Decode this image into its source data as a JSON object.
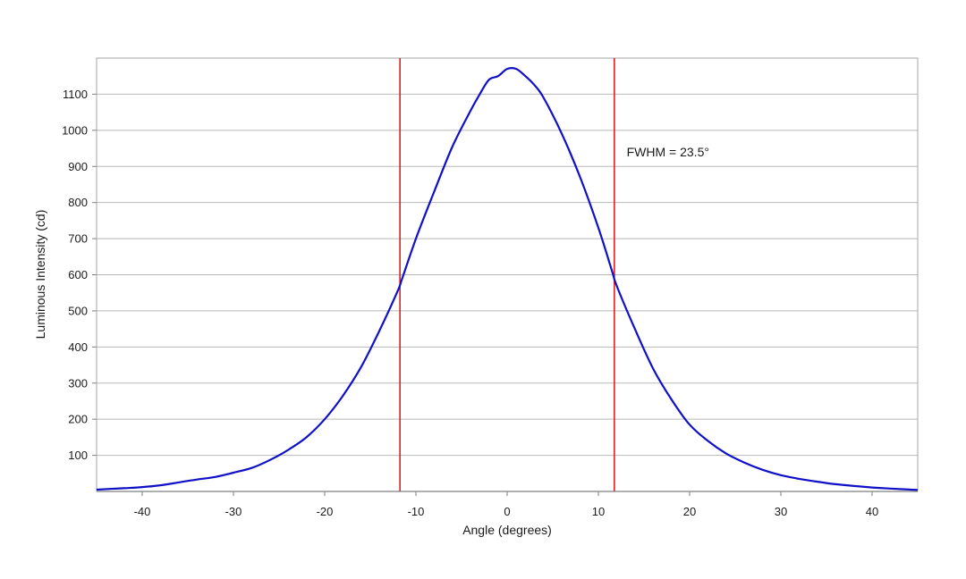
{
  "chart_data": {
    "type": "line",
    "title": "",
    "xlabel": "Angle (degrees)",
    "ylabel": "Luminous Intensity (cd)",
    "xlim": [
      -45,
      45
    ],
    "ylim": [
      0,
      1200
    ],
    "x_ticks": [
      -40,
      -30,
      -20,
      -10,
      0,
      10,
      20,
      30,
      40
    ],
    "y_ticks": [
      100,
      200,
      300,
      400,
      500,
      600,
      700,
      800,
      900,
      1000,
      1100
    ],
    "grid": "horizontal",
    "legend": "none",
    "series": [
      {
        "color": "#1010c8",
        "x": [
          -45,
          -42,
          -40,
          -38,
          -36,
          -34,
          -32,
          -30,
          -28,
          -26,
          -24,
          -22,
          -20,
          -18,
          -16,
          -14,
          -12,
          -11.5,
          -10,
          -8,
          -6,
          -4,
          -3,
          -2,
          -1,
          0,
          1,
          2,
          3,
          4,
          6,
          8,
          10,
          11.5,
          12,
          14,
          16,
          18,
          20,
          22,
          24,
          26,
          28,
          30,
          32,
          34,
          36,
          38,
          40,
          42,
          45
        ],
        "y": [
          5,
          9,
          12,
          17,
          25,
          33,
          40,
          52,
          65,
          87,
          115,
          150,
          200,
          265,
          345,
          445,
          555,
          590,
          700,
          830,
          955,
          1055,
          1100,
          1140,
          1150,
          1170,
          1170,
          1150,
          1125,
          1090,
          990,
          870,
          730,
          610,
          570,
          450,
          340,
          255,
          185,
          140,
          105,
          80,
          60,
          45,
          35,
          27,
          20,
          15,
          11,
          8,
          4
        ]
      }
    ],
    "vlines": [
      {
        "x": -11.75,
        "color": "#e02020"
      },
      {
        "x": 11.75,
        "color": "#e02020"
      }
    ],
    "annotations": [
      {
        "text": "FWHM = 23.5°",
        "x": 13.1,
        "y": 940
      }
    ]
  }
}
